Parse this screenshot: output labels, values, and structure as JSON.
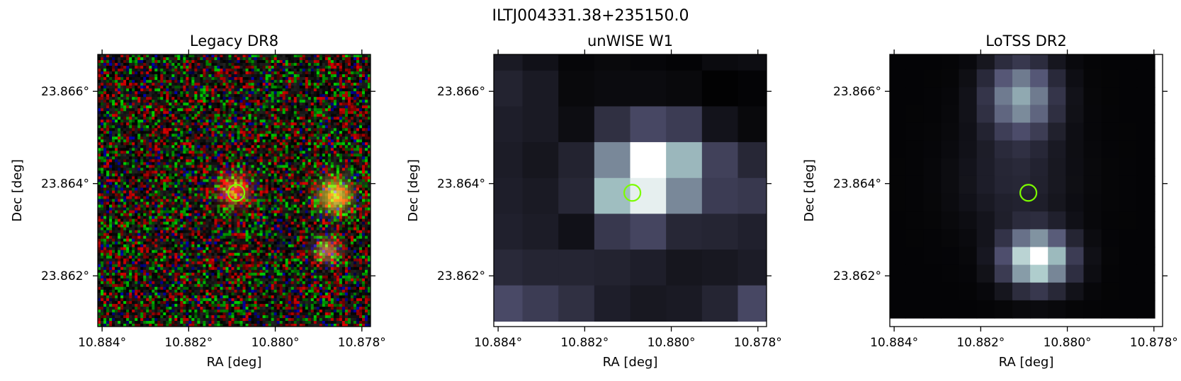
{
  "figure": {
    "title": "ILTJ004331.38+235150.0"
  },
  "chart_data": [
    {
      "type": "heatmap",
      "title": "Legacy DR8",
      "xlabel": "RA [deg]",
      "ylabel": "Dec [deg]",
      "xlim": [
        10.8841,
        10.8778
      ],
      "ylim": [
        23.8609,
        23.8668
      ],
      "x_ticks": [
        10.884,
        10.882,
        10.88,
        10.878
      ],
      "x_tick_labels": [
        "10.884°",
        "10.882°",
        "10.880°",
        "10.878°"
      ],
      "y_ticks": [
        23.862,
        23.864,
        23.866
      ],
      "y_tick_labels": [
        "23.862°",
        "23.864°",
        "23.866°"
      ],
      "image": "rgb noise field with a red compact source at the marker and a yellowish source near the right edge",
      "marker": {
        "ra": 10.8809,
        "dec": 23.8638,
        "shape": "circle",
        "color": "#7cfc00"
      }
    },
    {
      "type": "heatmap",
      "title": "unWISE W1",
      "xlabel": "RA [deg]",
      "ylabel": "Dec [deg]",
      "xlim": [
        10.8841,
        10.8778
      ],
      "ylim": [
        23.8609,
        23.8668
      ],
      "x_ticks": [
        10.884,
        10.882,
        10.88,
        10.878
      ],
      "x_tick_labels": [
        "10.884°",
        "10.882°",
        "10.880°",
        "10.878°"
      ],
      "y_ticks": [
        23.862,
        23.864,
        23.866
      ],
      "y_tick_labels": [
        "23.862°",
        "23.864°",
        "23.866°"
      ],
      "colormap": "bone",
      "marker": {
        "ra": 10.8809,
        "dec": 23.8638,
        "shape": "circle",
        "color": "#7cfc00"
      }
    },
    {
      "type": "heatmap",
      "title": "LoTSS DR2",
      "xlabel": "RA [deg]",
      "ylabel": "Dec [deg]",
      "xlim": [
        10.8841,
        10.8778
      ],
      "ylim": [
        23.8609,
        23.8668
      ],
      "x_ticks": [
        10.884,
        10.882,
        10.88,
        10.878
      ],
      "x_tick_labels": [
        "10.884°",
        "10.882°",
        "10.880°",
        "10.878°"
      ],
      "y_ticks": [
        23.862,
        23.864,
        23.866
      ],
      "y_tick_labels": [
        "23.862°",
        "23.864°",
        "23.866°"
      ],
      "colormap": "bone",
      "marker": {
        "ra": 10.8809,
        "dec": 23.8638,
        "shape": "circle",
        "color": "#7cfc00"
      }
    }
  ]
}
